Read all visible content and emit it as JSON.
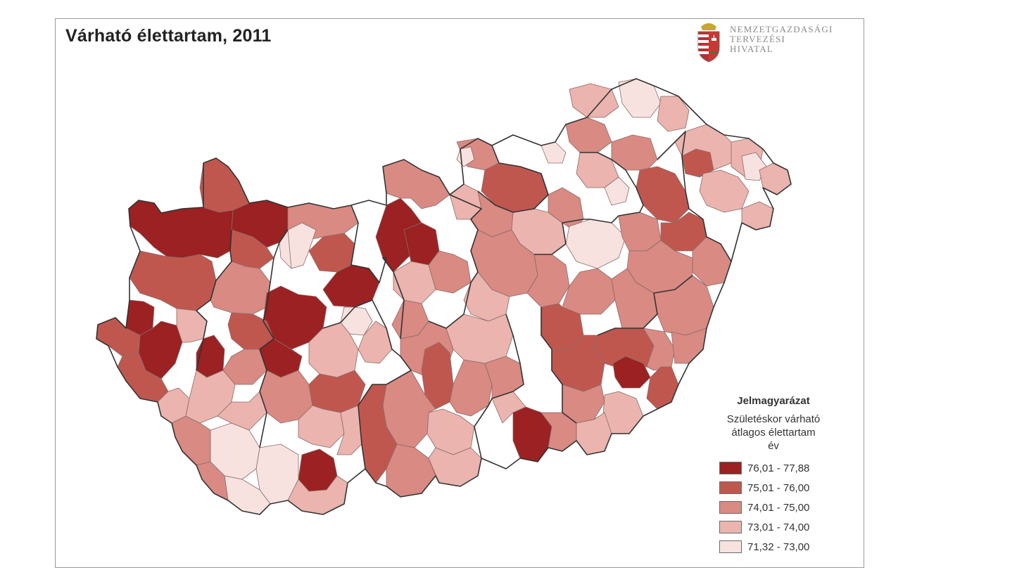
{
  "title": "Várható élettartam, 2011",
  "logo": {
    "icon": "hungarian-coat-of-arms-icon",
    "lines": [
      "NEMZETGAZDASÁGI",
      "TERVEZÉSI",
      "HIVATAL"
    ]
  },
  "legend": {
    "heading": "Jelmagyarázat",
    "subtitle_lines": [
      "Születéskor várható",
      "átlagos élettartam",
      "év"
    ],
    "classes": [
      {
        "label": "76,01 - 77,88",
        "color": "#9b2122"
      },
      {
        "label": "75,01 - 76,00",
        "color": "#c0574f"
      },
      {
        "label": "74,01 - 75,00",
        "color": "#d98a83"
      },
      {
        "label": "73,01 - 74,00",
        "color": "#ebb4ae"
      },
      {
        "label": "71,32 - 73,00",
        "color": "#f8e2df"
      }
    ]
  },
  "map": {
    "subject": "Hungary subregions (kistérségek)",
    "border_color": "#333333"
  }
}
